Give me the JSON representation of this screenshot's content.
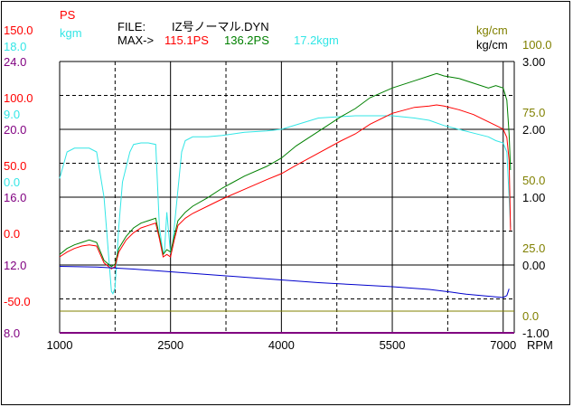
{
  "header": {
    "file_label": "FILE:",
    "file_name": "IZ号ノーマル.DYN",
    "max_label": "MAX->",
    "max_ps_red": "115.1PS",
    "max_ps_green": "136.2PS",
    "max_kgm": "17.2kgm"
  },
  "units": {
    "ps": "PS",
    "kgm": "kgm",
    "kgcm_right_top": "kg/cm",
    "kgcm_right": "kg/cm",
    "rpm": "RPM"
  },
  "colors": {
    "red": "#ff0000",
    "green": "#008000",
    "cyan": "#33e6e6",
    "blue": "#0000cc",
    "olive": "#808000",
    "purple": "#800080"
  },
  "chart_data": {
    "type": "line",
    "x_ticks": [
      "1000",
      "2500",
      "4000",
      "5500",
      "7000"
    ],
    "xlim": [
      1000,
      7150
    ],
    "left_axes": {
      "purple_ticks": [
        "24.0",
        "20.0",
        "16.0",
        "12.0",
        "8.0"
      ],
      "red_ticks": [
        "150.0",
        "100.0",
        "50.0",
        "0.0",
        "-50.0"
      ],
      "cyan_ticks": [
        "18.0",
        "9.0",
        "0.0"
      ]
    },
    "right_axes": {
      "black_ticks": [
        "3.00",
        "2.00",
        "1.00",
        "0.00",
        "-1.00"
      ],
      "olive_ticks": [
        "100.0",
        "75.0",
        "50.0",
        "25.0",
        "0.0"
      ]
    },
    "series": [
      {
        "color_key": "cyan",
        "ylim": [
          -18,
          18
        ],
        "x": [
          1000,
          1100,
          1200,
          1300,
          1400,
          1500,
          1600,
          1700,
          1720,
          1750,
          1800,
          1850,
          1900,
          1950,
          2000,
          2100,
          2200,
          2300,
          2350,
          2400,
          2420,
          2450,
          2500,
          2520,
          2550,
          2600,
          2650,
          2700,
          2800,
          3000,
          3200,
          3500,
          3800,
          4000,
          4500,
          5000,
          5500,
          5800,
          6000,
          6200,
          6400,
          6600,
          6800,
          6900,
          7000,
          7050,
          7080,
          7100
        ],
        "y": [
          2.5,
          6.0,
          6.5,
          6.5,
          6.5,
          6.0,
          0.0,
          -12.5,
          -12.8,
          -12.0,
          -4.0,
          2.0,
          4.0,
          6.0,
          7.0,
          7.2,
          7.2,
          7.0,
          -4.0,
          -7.5,
          -7.0,
          -2.0,
          -7.5,
          -7.0,
          -4.0,
          1.0,
          6.0,
          7.5,
          8.0,
          8.0,
          8.2,
          8.6,
          8.8,
          9.0,
          10.5,
          10.8,
          10.8,
          10.5,
          10.2,
          9.5,
          9.0,
          8.5,
          8.0,
          7.5,
          7.2,
          6.0,
          0.0,
          -4.0
        ]
      },
      {
        "color_key": "green",
        "ylim": [
          -75,
          150
        ],
        "x": [
          1000,
          1100,
          1200,
          1300,
          1400,
          1500,
          1600,
          1700,
          1750,
          1800,
          1900,
          2000,
          2100,
          2200,
          2300,
          2350,
          2400,
          2450,
          2500,
          2550,
          2600,
          2700,
          2800,
          3000,
          3200,
          3500,
          3800,
          4000,
          4200,
          4500,
          4800,
          5000,
          5200,
          5500,
          5800,
          6000,
          6100,
          6200,
          6400,
          6600,
          6800,
          6900,
          7000,
          7050,
          7080,
          7100
        ],
        "y": [
          -10,
          -5,
          -2,
          0,
          2,
          0,
          -15,
          -20,
          -18,
          -5,
          5,
          12,
          16,
          18,
          20,
          5,
          -10,
          -6,
          -8,
          5,
          18,
          25,
          30,
          37,
          45,
          55,
          63,
          70,
          80,
          92,
          104,
          111,
          120,
          128,
          134,
          138,
          140,
          138,
          136,
          132,
          128,
          130,
          128,
          118,
          90,
          60
        ]
      },
      {
        "color_key": "red",
        "ylim": [
          -75,
          150
        ],
        "x": [
          1000,
          1100,
          1200,
          1300,
          1400,
          1500,
          1600,
          1700,
          1750,
          1800,
          1900,
          2000,
          2100,
          2200,
          2300,
          2350,
          2400,
          2450,
          2500,
          2550,
          2600,
          2700,
          2800,
          3000,
          3200,
          3500,
          3800,
          4000,
          4200,
          4500,
          4800,
          5000,
          5200,
          5500,
          5800,
          6000,
          6100,
          6200,
          6400,
          6600,
          6800,
          6900,
          7000,
          7050,
          7080,
          7100
        ],
        "y": [
          -12,
          -8,
          -5,
          -3,
          -2,
          -3,
          -17,
          -22,
          -20,
          -8,
          2,
          8,
          12,
          14,
          16,
          3,
          -12,
          -10,
          -12,
          2,
          14,
          20,
          24,
          30,
          36,
          44,
          52,
          57,
          64,
          74,
          84,
          90,
          98,
          107,
          112,
          113,
          114,
          113,
          110,
          106,
          100,
          97,
          94,
          87,
          68,
          10
        ]
      },
      {
        "color_key": "blue",
        "ylim": [
          -1,
          3
        ],
        "x": [
          1000,
          1500,
          2000,
          2500,
          3000,
          3500,
          4000,
          4500,
          5000,
          5500,
          6000,
          6300,
          6500,
          6700,
          6800,
          6900,
          7000,
          7050,
          7080
        ],
        "y": [
          -0.02,
          -0.03,
          -0.06,
          -0.1,
          -0.14,
          -0.18,
          -0.22,
          -0.26,
          -0.29,
          -0.32,
          -0.36,
          -0.4,
          -0.43,
          -0.45,
          -0.46,
          -0.47,
          -0.48,
          -0.45,
          -0.35
        ]
      },
      {
        "color_key": "olive",
        "ylim": [
          0,
          100
        ],
        "x": [
          1000,
          7150
        ],
        "y": [
          8,
          8
        ]
      },
      {
        "color_key": "purple",
        "ylim": [
          8,
          24
        ],
        "x": [
          1000,
          7150
        ],
        "y": [
          8,
          8
        ]
      }
    ]
  }
}
